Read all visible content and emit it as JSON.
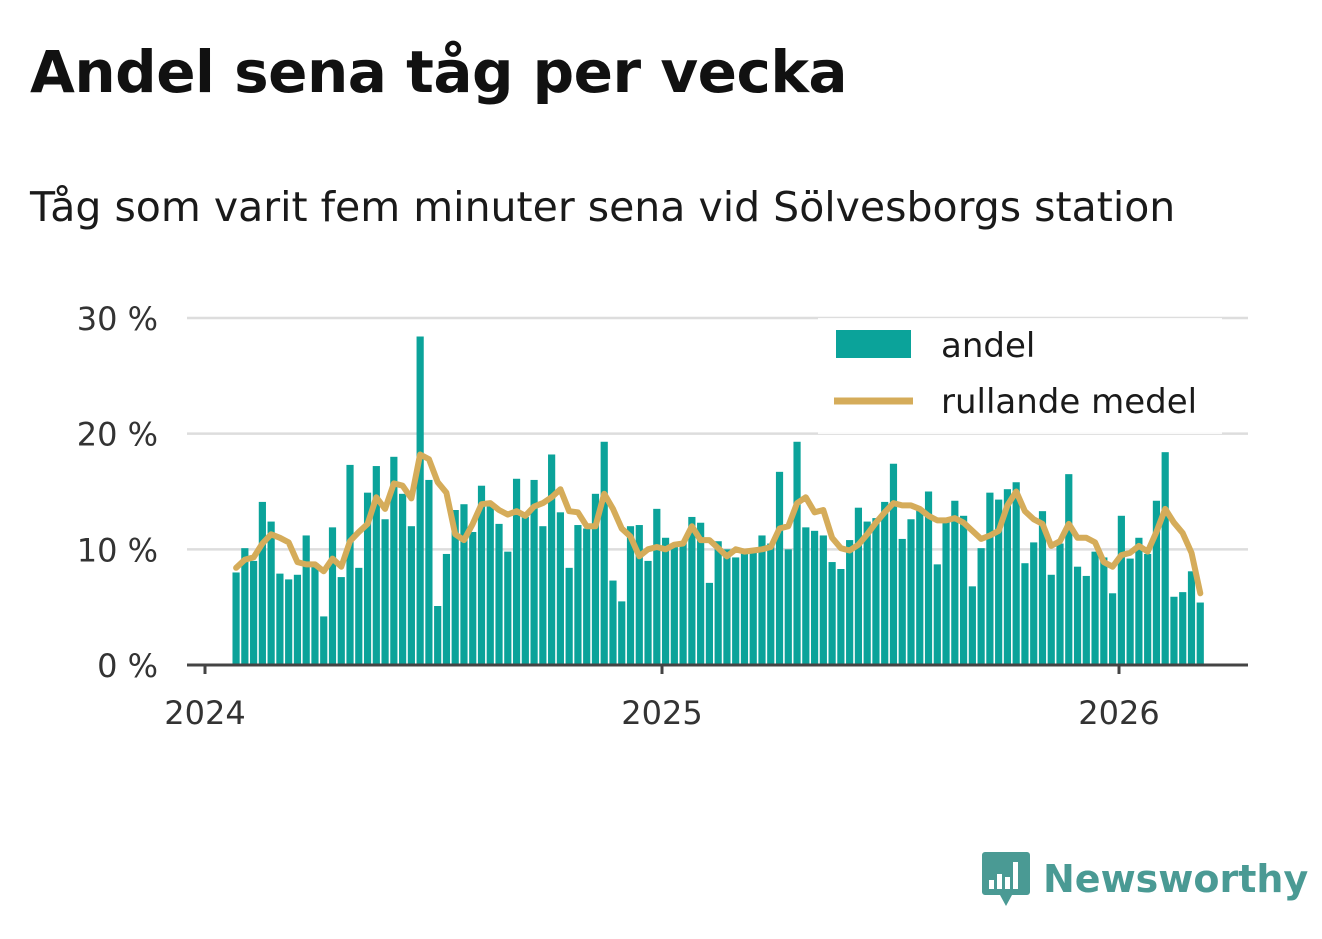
{
  "title": "Andel sena tåg per vecka",
  "subtitle": "Tåg som varit fem minuter sena vid Sölvesborgs station",
  "brand": {
    "name": "Newsworthy",
    "icon": "bar-chart-bubble-icon",
    "color": "#4a9a94"
  },
  "colors": {
    "bar": "#0ba39a",
    "line": "#d5ac5a",
    "grid": "#dddddd",
    "axis": "#444444",
    "text": "#333333"
  },
  "chart_data": {
    "type": "bar",
    "title": "Andel sena tåg per vecka",
    "xlabel": "",
    "ylabel": "",
    "ylim": [
      0,
      30
    ],
    "yticks": [
      0,
      10,
      20,
      30
    ],
    "ytick_labels": [
      "0 %",
      "10 %",
      "20 %",
      "30 %"
    ],
    "xticks": [
      2024,
      2025,
      2026
    ],
    "xtick_labels": [
      "2024",
      "2025",
      "2026"
    ],
    "xlim": [
      2024.0,
      2026.28
    ],
    "grid": true,
    "legend": {
      "position": "top-right",
      "entries": [
        "andel",
        "rullande medel"
      ]
    },
    "x_start": 2024.068,
    "x_step": 0.01918,
    "series": [
      {
        "name": "andel",
        "kind": "bar",
        "values": [
          8.0,
          10.1,
          9.0,
          14.1,
          12.4,
          7.9,
          7.4,
          7.8,
          11.2,
          8.8,
          4.2,
          11.9,
          7.6,
          17.3,
          8.4,
          14.9,
          17.2,
          12.6,
          18.0,
          14.8,
          12.0,
          28.4,
          16.0,
          5.1,
          9.6,
          13.4,
          13.9,
          11.5,
          15.5,
          13.7,
          12.2,
          9.8,
          16.1,
          12.8,
          16.0,
          12.0,
          18.2,
          13.2,
          8.4,
          12.1,
          11.8,
          14.8,
          19.3,
          7.3,
          5.5,
          12.0,
          12.1,
          9.0,
          13.5,
          11.0,
          10.5,
          10.6,
          12.8,
          12.3,
          7.1,
          10.7,
          10.0,
          9.3,
          9.9,
          9.9,
          11.2,
          10.5,
          16.7,
          10.0,
          19.3,
          11.9,
          11.6,
          11.2,
          8.9,
          8.3,
          10.8,
          13.6,
          12.4,
          12.7,
          14.1,
          17.4,
          10.9,
          12.6,
          13.5,
          15.0,
          8.7,
          12.7,
          14.2,
          12.9,
          6.8,
          10.1,
          14.9,
          14.3,
          15.2,
          15.8,
          8.8,
          10.6,
          13.3,
          7.8,
          10.5,
          16.5,
          8.5,
          7.7,
          9.8,
          9.3,
          6.2,
          12.9,
          9.2,
          11.0,
          9.6,
          14.2,
          18.4,
          5.9,
          6.3,
          8.1,
          5.4
        ]
      },
      {
        "name": "rullande medel",
        "kind": "line",
        "values": [
          8.4,
          9.1,
          9.3,
          10.5,
          11.3,
          11.0,
          10.6,
          8.9,
          8.7,
          8.7,
          8.1,
          9.2,
          8.5,
          10.7,
          11.5,
          12.2,
          14.5,
          13.5,
          15.7,
          15.5,
          14.4,
          18.2,
          17.8,
          15.8,
          14.9,
          11.3,
          10.8,
          12.2,
          13.9,
          14.0,
          13.4,
          13.0,
          13.3,
          12.9,
          13.7,
          14.0,
          14.5,
          15.2,
          13.3,
          13.2,
          12.0,
          12.0,
          14.8,
          13.5,
          11.8,
          11.1,
          9.4,
          10.0,
          10.2,
          10.0,
          10.4,
          10.5,
          12.0,
          10.8,
          10.8,
          10.1,
          9.4,
          10.0,
          9.8,
          9.9,
          10.0,
          10.2,
          11.8,
          12.0,
          14.0,
          14.5,
          13.2,
          13.4,
          11.0,
          10.1,
          9.9,
          10.4,
          11.3,
          12.3,
          13.2,
          14.0,
          13.8,
          13.8,
          13.5,
          12.9,
          12.5,
          12.5,
          12.7,
          12.3,
          11.6,
          10.9,
          11.2,
          11.6,
          13.8,
          15.0,
          13.3,
          12.6,
          12.2,
          10.3,
          10.7,
          12.2,
          11.0,
          11.0,
          10.6,
          8.9,
          8.5,
          9.5,
          9.7,
          10.3,
          9.8,
          11.5,
          13.5,
          12.3,
          11.4,
          9.7,
          6.2
        ]
      }
    ]
  }
}
